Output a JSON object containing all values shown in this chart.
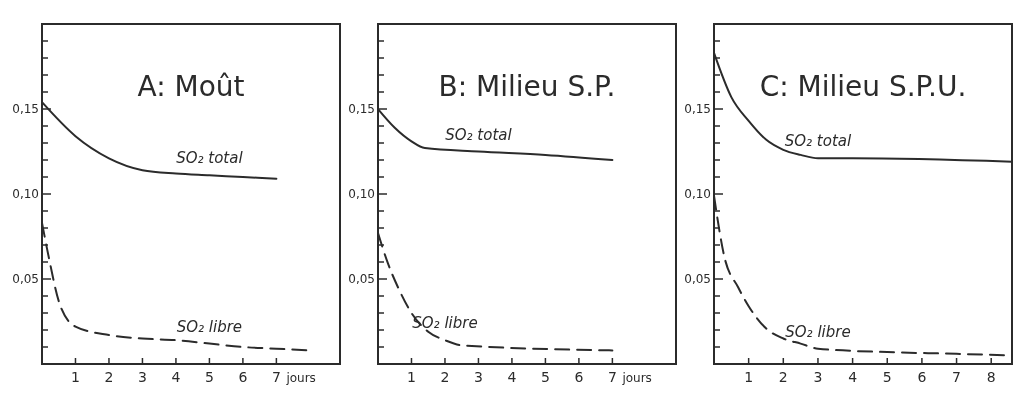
{
  "chart_data": [
    {
      "type": "line",
      "title": "A: Moût",
      "xlabel": "jours",
      "xlim": [
        0,
        8.9
      ],
      "ylim": [
        0,
        0.2
      ],
      "xticks": [
        1,
        2,
        3,
        4,
        5,
        6,
        7
      ],
      "yticks": [
        {
          "value": 0.01,
          "label": null
        },
        {
          "value": 0.02,
          "label": null
        },
        {
          "value": 0.03,
          "label": null
        },
        {
          "value": 0.04,
          "label": null
        },
        {
          "value": 0.05,
          "label": "0,05"
        },
        {
          "value": 0.06,
          "label": null
        },
        {
          "value": 0.07,
          "label": null
        },
        {
          "value": 0.08,
          "label": null
        },
        {
          "value": 0.09,
          "label": null
        },
        {
          "value": 0.1,
          "label": "0,10"
        },
        {
          "value": 0.11,
          "label": null
        },
        {
          "value": 0.12,
          "label": null
        },
        {
          "value": 0.13,
          "label": null
        },
        {
          "value": 0.14,
          "label": null
        },
        {
          "value": 0.15,
          "label": "0,15"
        },
        {
          "value": 0.16,
          "label": null
        },
        {
          "value": 0.17,
          "label": null
        },
        {
          "value": 0.18,
          "label": null
        },
        {
          "value": 0.19,
          "label": null
        }
      ],
      "series": [
        {
          "name": "SO₂ total",
          "color": "#2b2b2b",
          "line_style": "solid",
          "x": [
            0,
            1,
            2,
            3,
            4,
            5,
            6,
            7
          ],
          "values": [
            0.154,
            0.134,
            0.121,
            0.114,
            0.112,
            0.111,
            0.11,
            0.109
          ]
        },
        {
          "name": "SO₂ libre",
          "color": "#2b2b2b",
          "line_style": "dashed",
          "x": [
            0,
            0.2,
            0.5,
            0.8,
            1,
            2,
            3,
            4,
            5,
            6,
            7,
            8
          ],
          "values": [
            0.083,
            0.063,
            0.037,
            0.025,
            0.022,
            0.017,
            0.015,
            0.014,
            0.012,
            0.01,
            0.009,
            0.008
          ]
        }
      ]
    },
    {
      "type": "line",
      "title": "B: Milieu S.P.",
      "xlabel": "jours",
      "xlim": [
        0,
        8.9
      ],
      "ylim": [
        0,
        0.2
      ],
      "xticks": [
        1,
        2,
        3,
        4,
        5,
        6,
        7
      ],
      "yticks": [
        {
          "value": 0.01,
          "label": null
        },
        {
          "value": 0.02,
          "label": null
        },
        {
          "value": 0.03,
          "label": null
        },
        {
          "value": 0.04,
          "label": null
        },
        {
          "value": 0.05,
          "label": "0,05"
        },
        {
          "value": 0.06,
          "label": null
        },
        {
          "value": 0.07,
          "label": null
        },
        {
          "value": 0.08,
          "label": null
        },
        {
          "value": 0.09,
          "label": null
        },
        {
          "value": 0.1,
          "label": "0,10"
        },
        {
          "value": 0.11,
          "label": null
        },
        {
          "value": 0.12,
          "label": null
        },
        {
          "value": 0.13,
          "label": null
        },
        {
          "value": 0.14,
          "label": null
        },
        {
          "value": 0.15,
          "label": "0,15"
        },
        {
          "value": 0.16,
          "label": null
        },
        {
          "value": 0.17,
          "label": null
        },
        {
          "value": 0.18,
          "label": null
        },
        {
          "value": 0.19,
          "label": null
        }
      ],
      "series": [
        {
          "name": "SO₂ total",
          "color": "#2b2b2b",
          "line_style": "solid",
          "x": [
            0,
            0.5,
            1,
            1.4,
            3,
            5,
            7
          ],
          "values": [
            0.15,
            0.139,
            0.131,
            0.127,
            0.125,
            0.123,
            0.12
          ]
        },
        {
          "name": "SO₂ libre",
          "color": "#2b2b2b",
          "line_style": "dashed",
          "x": [
            0,
            0.3,
            0.6,
            1,
            1.5,
            2,
            2.5,
            7
          ],
          "values": [
            0.077,
            0.059,
            0.045,
            0.03,
            0.019,
            0.014,
            0.011,
            0.008
          ]
        }
      ]
    },
    {
      "type": "line",
      "title": "C: Milieu S.P.U.",
      "xlim": [
        0,
        8.6
      ],
      "ylim": [
        0,
        0.2
      ],
      "xticks": [
        1,
        2,
        3,
        4,
        5,
        6,
        7,
        8
      ],
      "yticks": [
        {
          "value": 0.01,
          "label": null
        },
        {
          "value": 0.02,
          "label": null
        },
        {
          "value": 0.03,
          "label": null
        },
        {
          "value": 0.04,
          "label": null
        },
        {
          "value": 0.05,
          "label": "0,05"
        },
        {
          "value": 0.06,
          "label": null
        },
        {
          "value": 0.07,
          "label": null
        },
        {
          "value": 0.08,
          "label": null
        },
        {
          "value": 0.09,
          "label": null
        },
        {
          "value": 0.1,
          "label": "0,10"
        },
        {
          "value": 0.11,
          "label": null
        },
        {
          "value": 0.12,
          "label": null
        },
        {
          "value": 0.13,
          "label": null
        },
        {
          "value": 0.14,
          "label": null
        },
        {
          "value": 0.15,
          "label": "0,15"
        },
        {
          "value": 0.16,
          "label": null
        },
        {
          "value": 0.17,
          "label": null
        },
        {
          "value": 0.18,
          "label": null
        },
        {
          "value": 0.19,
          "label": null
        }
      ],
      "series": [
        {
          "name": "SO₂ total",
          "color": "#2b2b2b",
          "line_style": "solid",
          "x": [
            0,
            0.5,
            1,
            1.5,
            2,
            2.5,
            3,
            4,
            8.6
          ],
          "values": [
            0.183,
            0.157,
            0.143,
            0.132,
            0.126,
            0.123,
            0.121,
            0.121,
            0.119
          ]
        },
        {
          "name": "SO₂ libre",
          "color": "#2b2b2b",
          "line_style": "dashed",
          "x": [
            0,
            0.3,
            0.7,
            1,
            1.5,
            2,
            2.5,
            3,
            5,
            7,
            8.6
          ],
          "values": [
            0.099,
            0.063,
            0.045,
            0.034,
            0.021,
            0.015,
            0.012,
            0.009,
            0.007,
            0.006,
            0.005
          ]
        }
      ]
    }
  ]
}
